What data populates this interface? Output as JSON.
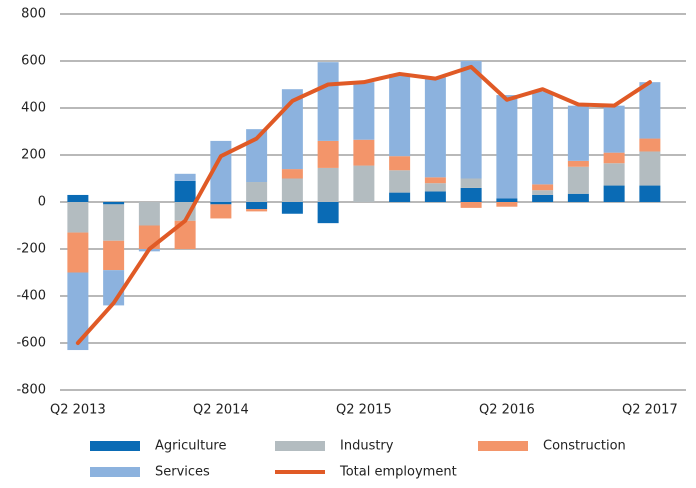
{
  "chart_data": {
    "type": "stacked_bar_line",
    "categories": [
      "Q2 2013",
      null,
      null,
      null,
      "Q2 2014",
      null,
      null,
      null,
      "Q2 2015",
      null,
      null,
      null,
      "Q2 2016",
      null,
      null,
      null,
      "Q2 2017"
    ],
    "series": [
      {
        "name": "Agriculture",
        "color": "#0a6bb5",
        "values": [
          30,
          -10,
          0,
          90,
          -10,
          -30,
          -50,
          -90,
          0,
          40,
          45,
          60,
          15,
          30,
          35,
          70,
          70
        ]
      },
      {
        "name": "Industry",
        "color": "#b3bcc0",
        "values": [
          -130,
          -155,
          -100,
          -80,
          0,
          85,
          100,
          145,
          155,
          95,
          35,
          40,
          0,
          20,
          115,
          95,
          145
        ]
      },
      {
        "name": "Construction",
        "color": "#f3956a",
        "values": [
          -170,
          -125,
          -100,
          -120,
          -60,
          -10,
          40,
          115,
          110,
          60,
          25,
          -25,
          -20,
          25,
          25,
          45,
          55
        ]
      },
      {
        "name": "Services",
        "color": "#8cb2de",
        "values": [
          -330,
          -150,
          -10,
          30,
          260,
          225,
          340,
          335,
          245,
          350,
          425,
          500,
          440,
          395,
          235,
          200,
          240
        ]
      },
      {
        "name": "Total employment",
        "color": "#e05a26",
        "type": "line",
        "values": [
          -600,
          -430,
          -200,
          -80,
          195,
          270,
          430,
          500,
          510,
          545,
          525,
          575,
          435,
          480,
          415,
          410,
          510
        ]
      }
    ],
    "ylim": [
      -800,
      800
    ],
    "yticks": [
      -800,
      -600,
      -400,
      -200,
      0,
      200,
      400,
      600,
      800
    ],
    "grid": true,
    "legend": "bottom"
  }
}
